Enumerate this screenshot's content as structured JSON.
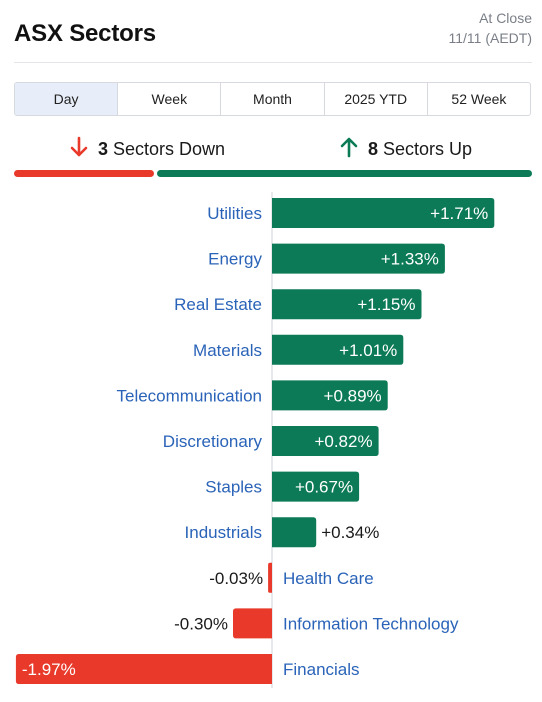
{
  "header": {
    "title": "ASX Sectors",
    "asof_line1": "At Close",
    "asof_line2": "11/11 (AEDT)"
  },
  "tabs": [
    {
      "label": "Day",
      "active": true
    },
    {
      "label": "Week",
      "active": false
    },
    {
      "label": "Month",
      "active": false
    },
    {
      "label": "2025 YTD",
      "active": false
    },
    {
      "label": "52 Week",
      "active": false
    }
  ],
  "summary": {
    "down_count": "3",
    "down_label": "Sectors Down",
    "up_count": "8",
    "up_label": "Sectors Up",
    "down_color": "#e8392a",
    "up_color": "#0c7a56",
    "down_icon": "arrow-down-icon",
    "up_icon": "arrow-up-icon"
  },
  "chart_data": {
    "type": "bar",
    "orientation": "horizontal",
    "categories": [
      "Utilities",
      "Energy",
      "Real Estate",
      "Materials",
      "Telecommunication",
      "Discretionary",
      "Staples",
      "Industrials",
      "Health Care",
      "Information Technology",
      "Financials"
    ],
    "values": [
      1.71,
      1.33,
      1.15,
      1.01,
      0.89,
      0.82,
      0.67,
      0.34,
      -0.03,
      -0.3,
      -1.97
    ],
    "labels": [
      "+1.71%",
      "+1.33%",
      "+1.15%",
      "+1.01%",
      "+0.89%",
      "+0.82%",
      "+0.67%",
      "+0.34%",
      "-0.03%",
      "-0.30%",
      "-1.97%"
    ],
    "positive_color": "#0c7a56",
    "negative_color": "#e8392a"
  }
}
